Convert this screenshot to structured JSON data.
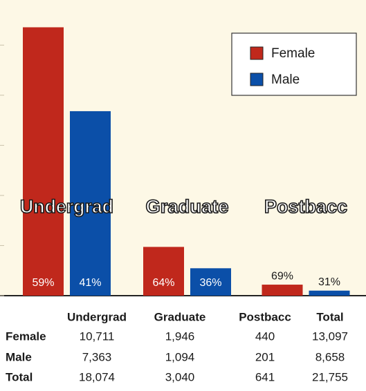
{
  "chart_data": {
    "type": "bar",
    "categories": [
      "Undergrad",
      "Graduate",
      "Postbacc"
    ],
    "series": [
      {
        "name": "Female",
        "color": "#c0281c",
        "values": [
          10711,
          1946,
          440
        ],
        "percent_labels": [
          "59%",
          "64%",
          "69%"
        ]
      },
      {
        "name": "Male",
        "color": "#0b4fa8",
        "values": [
          7363,
          1094,
          201
        ],
        "percent_labels": [
          "41%",
          "36%",
          "31%"
        ]
      }
    ],
    "ylim": [
      0,
      11800
    ],
    "yticks": [
      0,
      2000,
      4000,
      6000,
      8000,
      10000
    ],
    "legend": "top-right"
  },
  "table": {
    "columns": [
      "Undergrad",
      "Graduate",
      "Postbacc",
      "Total"
    ],
    "rows": [
      {
        "label": "Female",
        "cells": [
          "10,711",
          "1,946",
          "440",
          "13,097"
        ]
      },
      {
        "label": "Male",
        "cells": [
          "7,363",
          "1,094",
          "201",
          "8,658"
        ]
      },
      {
        "label": "Total",
        "cells": [
          "18,074",
          "3,040",
          "641",
          "21,755"
        ]
      }
    ]
  }
}
